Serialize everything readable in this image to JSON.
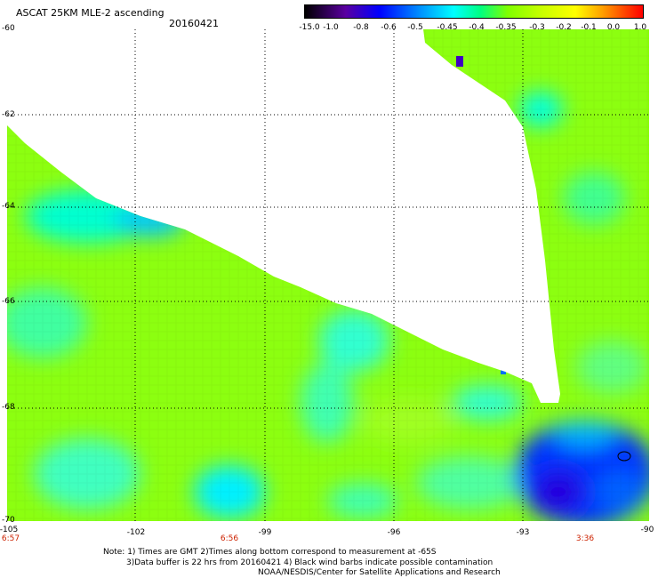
{
  "title": "ASCAT 25KM MLE-2 ascending",
  "date": "20160421",
  "colorbar": {
    "labels": [
      "-15.0",
      "-1.0",
      "-0.8",
      "-0.6",
      "-0.5",
      "-0.45",
      "-0.4",
      "-0.35",
      "-0.3",
      "-0.2",
      "-0.1",
      "0.0",
      "1.0"
    ],
    "colors": [
      "#000000",
      "#5a00a0",
      "#0000ff",
      "#0090ff",
      "#00ffff",
      "#00ff80",
      "#80ff00",
      "#c8ff00",
      "#ffff00",
      "#ffa000",
      "#ff4000",
      "#ff0000"
    ]
  },
  "latitude_labels": [
    "-60",
    "-62",
    "-64",
    "-66",
    "-68",
    "-70"
  ],
  "longitude_labels": [
    "-105",
    "-102",
    "-99",
    "-96",
    "-93",
    "-90"
  ],
  "time_labels": [
    "6:57",
    "6:56",
    "3:36"
  ],
  "notes": [
    "Note: 1) Times are GMT 2)Times along bottom correspond to measurement at -65S",
    "3)Data buffer is 22 hrs from 20160421 4) Black wind barbs indicate possible contamination",
    "NOAA/NESDIS/Center for Satellite Applications and Research"
  ],
  "colors": {
    "dominant_field": "#88ff00",
    "low_values": "#00ffff",
    "lowest_values": "#0000ff",
    "gridline": "#000000"
  }
}
